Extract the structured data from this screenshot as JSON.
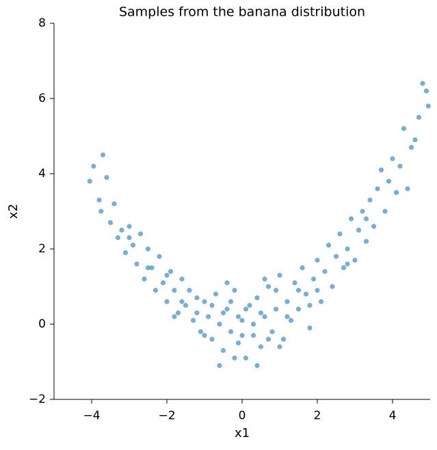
{
  "chart_data": {
    "type": "scatter",
    "title": "Samples from the banana distribution",
    "x_label": "x1",
    "y_label": "x2",
    "color": "#1f77b4",
    "x": [
      -4.05,
      -3.95,
      -3.8,
      -3.7,
      -3.75,
      -3.6,
      -3.5,
      -3.4,
      -3.3,
      -3.2,
      -3.1,
      -3.0,
      -2.9,
      -2.8,
      -2.7,
      -2.6,
      -2.5,
      -2.4,
      -2.3,
      -2.2,
      -2.1,
      -2.0,
      -1.9,
      -1.8,
      -1.7,
      -1.6,
      -1.5,
      -1.4,
      -1.3,
      -1.2,
      -1.1,
      -1.0,
      -0.9,
      -0.8,
      -0.7,
      -0.6,
      -0.5,
      -0.4,
      -0.3,
      -0.2,
      -0.1,
      0.0,
      0.1,
      0.2,
      0.3,
      0.4,
      0.5,
      0.6,
      0.7,
      0.8,
      0.9,
      1.0,
      1.1,
      1.2,
      1.3,
      1.4,
      1.5,
      1.6,
      1.7,
      1.8,
      1.9,
      2.0,
      2.1,
      2.2,
      2.3,
      2.4,
      2.5,
      2.6,
      2.7,
      2.8,
      2.9,
      3.0,
      3.1,
      3.2,
      3.3,
      3.4,
      3.5,
      3.6,
      3.7,
      3.8,
      3.9,
      4.0,
      4.1,
      4.2,
      4.3,
      4.4,
      4.5,
      4.6,
      4.7,
      4.8,
      4.9,
      4.95,
      -0.8,
      -0.5,
      -0.3,
      -0.1,
      0.1,
      0.3,
      0.5,
      0.7,
      0.9,
      -1.2,
      -1.6,
      1.2,
      1.5,
      -2.0,
      2.0,
      -0.6,
      0.4,
      -0.2,
      0.0,
      -1.0,
      1.0,
      -2.5,
      2.8,
      -3.0,
      3.3,
      1.8,
      -1.8,
      0.6,
      -0.4
    ],
    "values": [
      3.8,
      4.2,
      3.3,
      4.5,
      3.0,
      3.9,
      2.7,
      3.2,
      2.3,
      2.5,
      1.9,
      2.6,
      2.1,
      1.6,
      2.4,
      1.2,
      2.0,
      1.5,
      0.9,
      1.8,
      1.1,
      0.6,
      1.4,
      0.9,
      0.3,
      1.2,
      0.5,
      0.9,
      0.1,
      0.7,
      -0.2,
      0.6,
      0.2,
      -0.4,
      0.8,
      0.0,
      -0.7,
      0.4,
      -0.2,
      0.9,
      -0.5,
      0.1,
      -0.9,
      0.5,
      -0.3,
      0.7,
      -0.6,
      0.2,
      1.0,
      -0.2,
      0.4,
      1.3,
      -0.4,
      0.6,
      0.1,
      1.1,
      0.4,
      1.5,
      0.8,
      -0.1,
      1.2,
      1.7,
      0.6,
      1.4,
      2.1,
      1.0,
      1.8,
      2.4,
      1.5,
      2.0,
      2.8,
      1.7,
      2.5,
      3.0,
      2.2,
      3.3,
      2.6,
      3.6,
      4.1,
      3.0,
      3.8,
      4.4,
      3.5,
      4.2,
      5.2,
      3.6,
      4.7,
      4.9,
      5.5,
      6.4,
      6.2,
      5.8,
      0.5,
      0.3,
      0.6,
      0.2,
      0.4,
      0.0,
      0.3,
      -0.4,
      0.9,
      0.3,
      0.6,
      0.2,
      0.9,
      1.3,
      0.9,
      -1.1,
      -1.1,
      -0.9,
      -0.3,
      -0.3,
      -0.6,
      1.5,
      1.6,
      2.3,
      2.8,
      0.5,
      0.2,
      1.2,
      1.1
    ],
    "xlim": [
      -5,
      5
    ],
    "ylim": [
      -2,
      8
    ],
    "xticks": [
      {
        "value": -4,
        "label": "−4"
      },
      {
        "value": -2,
        "label": "−2"
      },
      0,
      2,
      4
    ],
    "yticks": [
      {
        "value": -2,
        "label": "−2"
      },
      0,
      2,
      4,
      6,
      8
    ]
  }
}
